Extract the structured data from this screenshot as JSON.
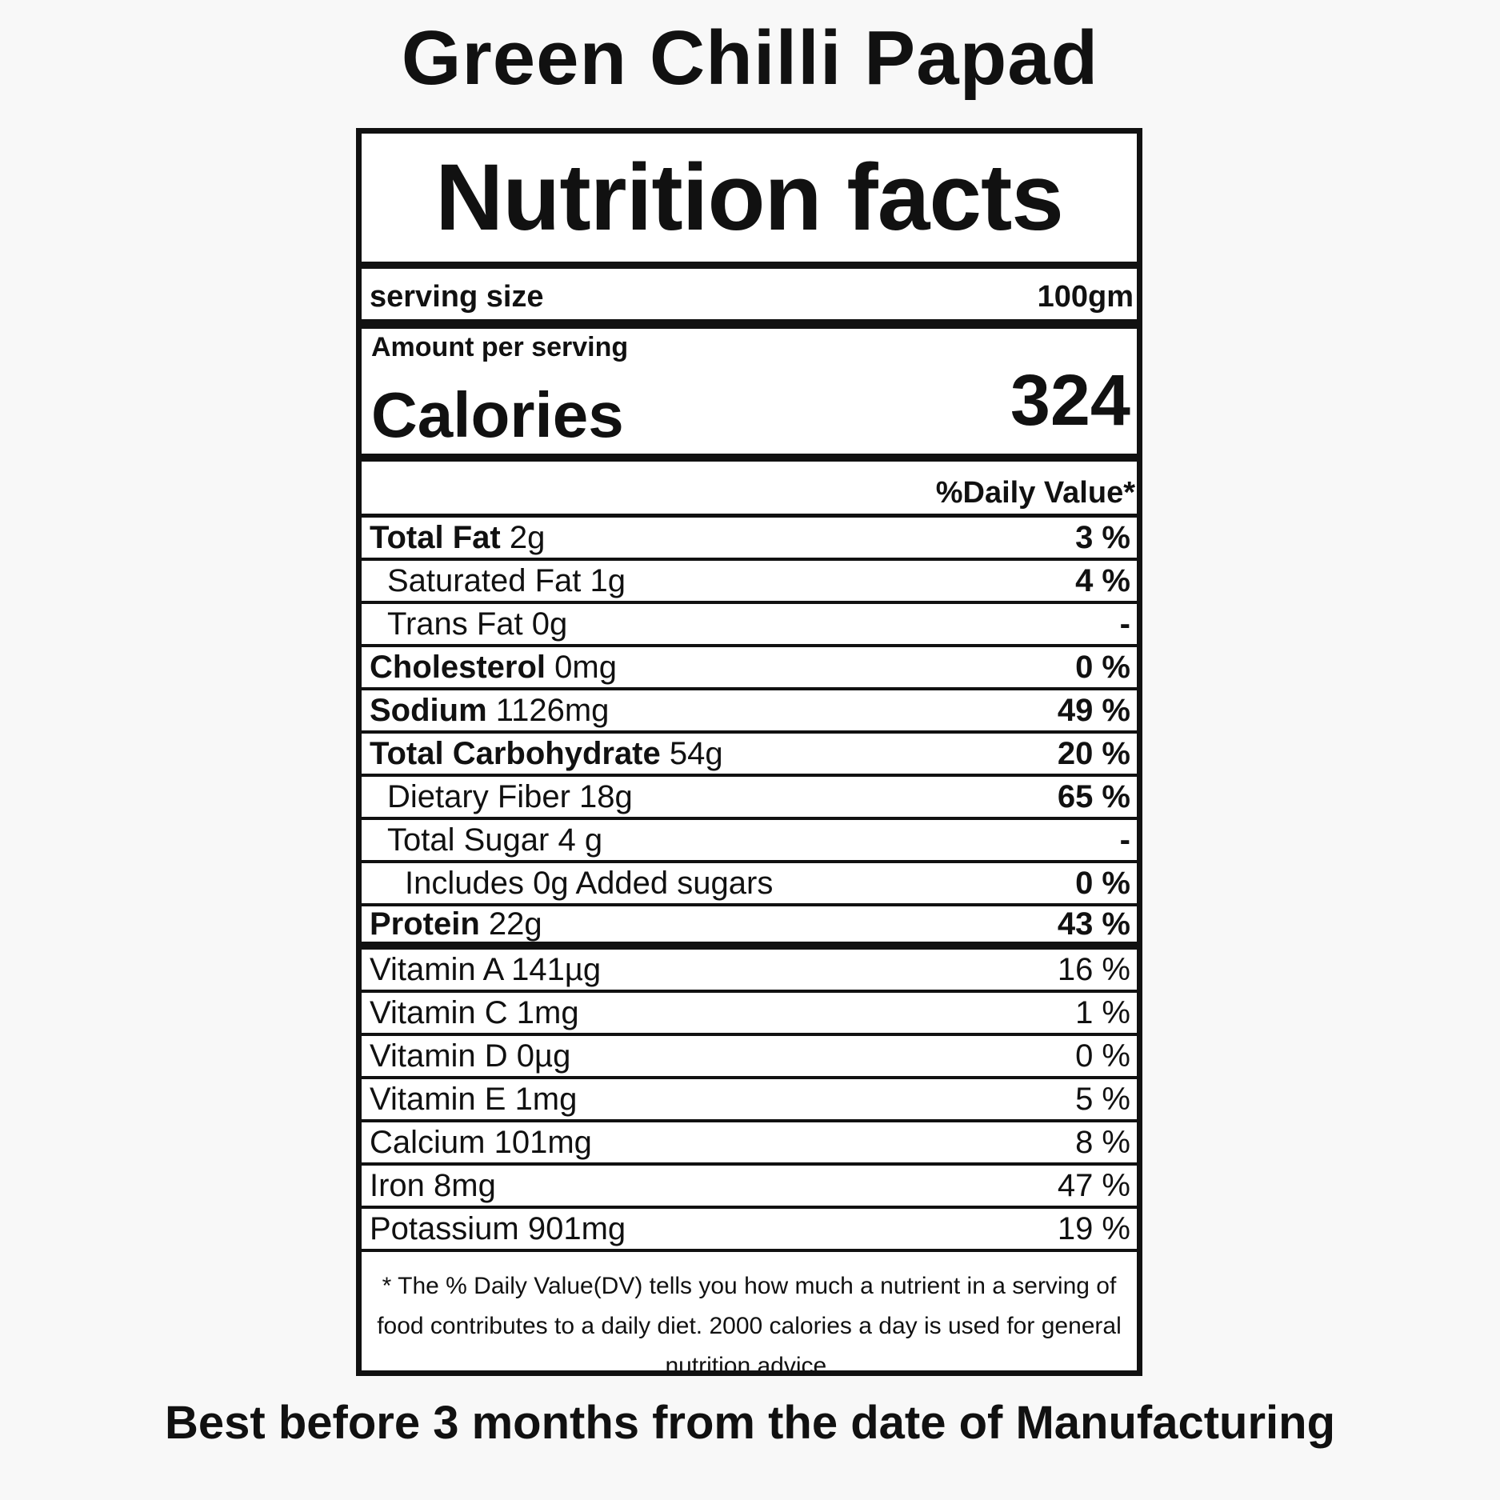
{
  "product_title": "Green Chilli Papad",
  "label": {
    "heading": "Nutrition facts",
    "serving_size_label": "serving size",
    "serving_size_value": "100gm",
    "amount_per_serving": "Amount per serving",
    "calories_label": "Calories",
    "calories_value": "324",
    "daily_value_header": "%Daily Value*",
    "nutrients": [
      {
        "name": "Total Fat",
        "amount": "2g",
        "dv": "3 %"
      },
      {
        "name": "Saturated Fat 1g",
        "amount": "",
        "dv": "4 %"
      },
      {
        "name": "Trans Fat 0g",
        "amount": "",
        "dv": "-"
      },
      {
        "name": "Cholesterol",
        "amount": "0mg",
        "dv": "0 %"
      },
      {
        "name": "Sodium",
        "amount": "1126mg",
        "dv": "49 %"
      },
      {
        "name": "Total Carbohydrate",
        "amount": "54g",
        "dv": "20 %"
      },
      {
        "name": "Dietary Fiber 18g",
        "amount": "",
        "dv": "65 %"
      },
      {
        "name": "Total Sugar 4 g",
        "amount": "",
        "dv": "-"
      },
      {
        "name": "Includes 0g Added sugars",
        "amount": "",
        "dv": "0 %"
      },
      {
        "name": "Protein",
        "amount": "22g",
        "dv": "43 %"
      }
    ],
    "vitamins": [
      {
        "name": "Vitamin A 141µg",
        "dv": "16 %"
      },
      {
        "name": "Vitamin C 1mg",
        "dv": "1 %"
      },
      {
        "name": "Vitamin D 0µg",
        "dv": "0 %"
      },
      {
        "name": "Vitamin E 1mg",
        "dv": "5 %"
      },
      {
        "name": "Calcium 101mg",
        "dv": "8 %"
      },
      {
        "name": "Iron 8mg",
        "dv": "47 %"
      },
      {
        "name": "Potassium 901mg",
        "dv": "19 %"
      }
    ],
    "footnote": "* The %  Daily Value(DV) tells you how much a nutrient in a serving of food contributes to a daily diet. 2000 calories a day is used for general nutrition advice."
  },
  "best_before": "Best before 3 months from the date of Manufacturing"
}
